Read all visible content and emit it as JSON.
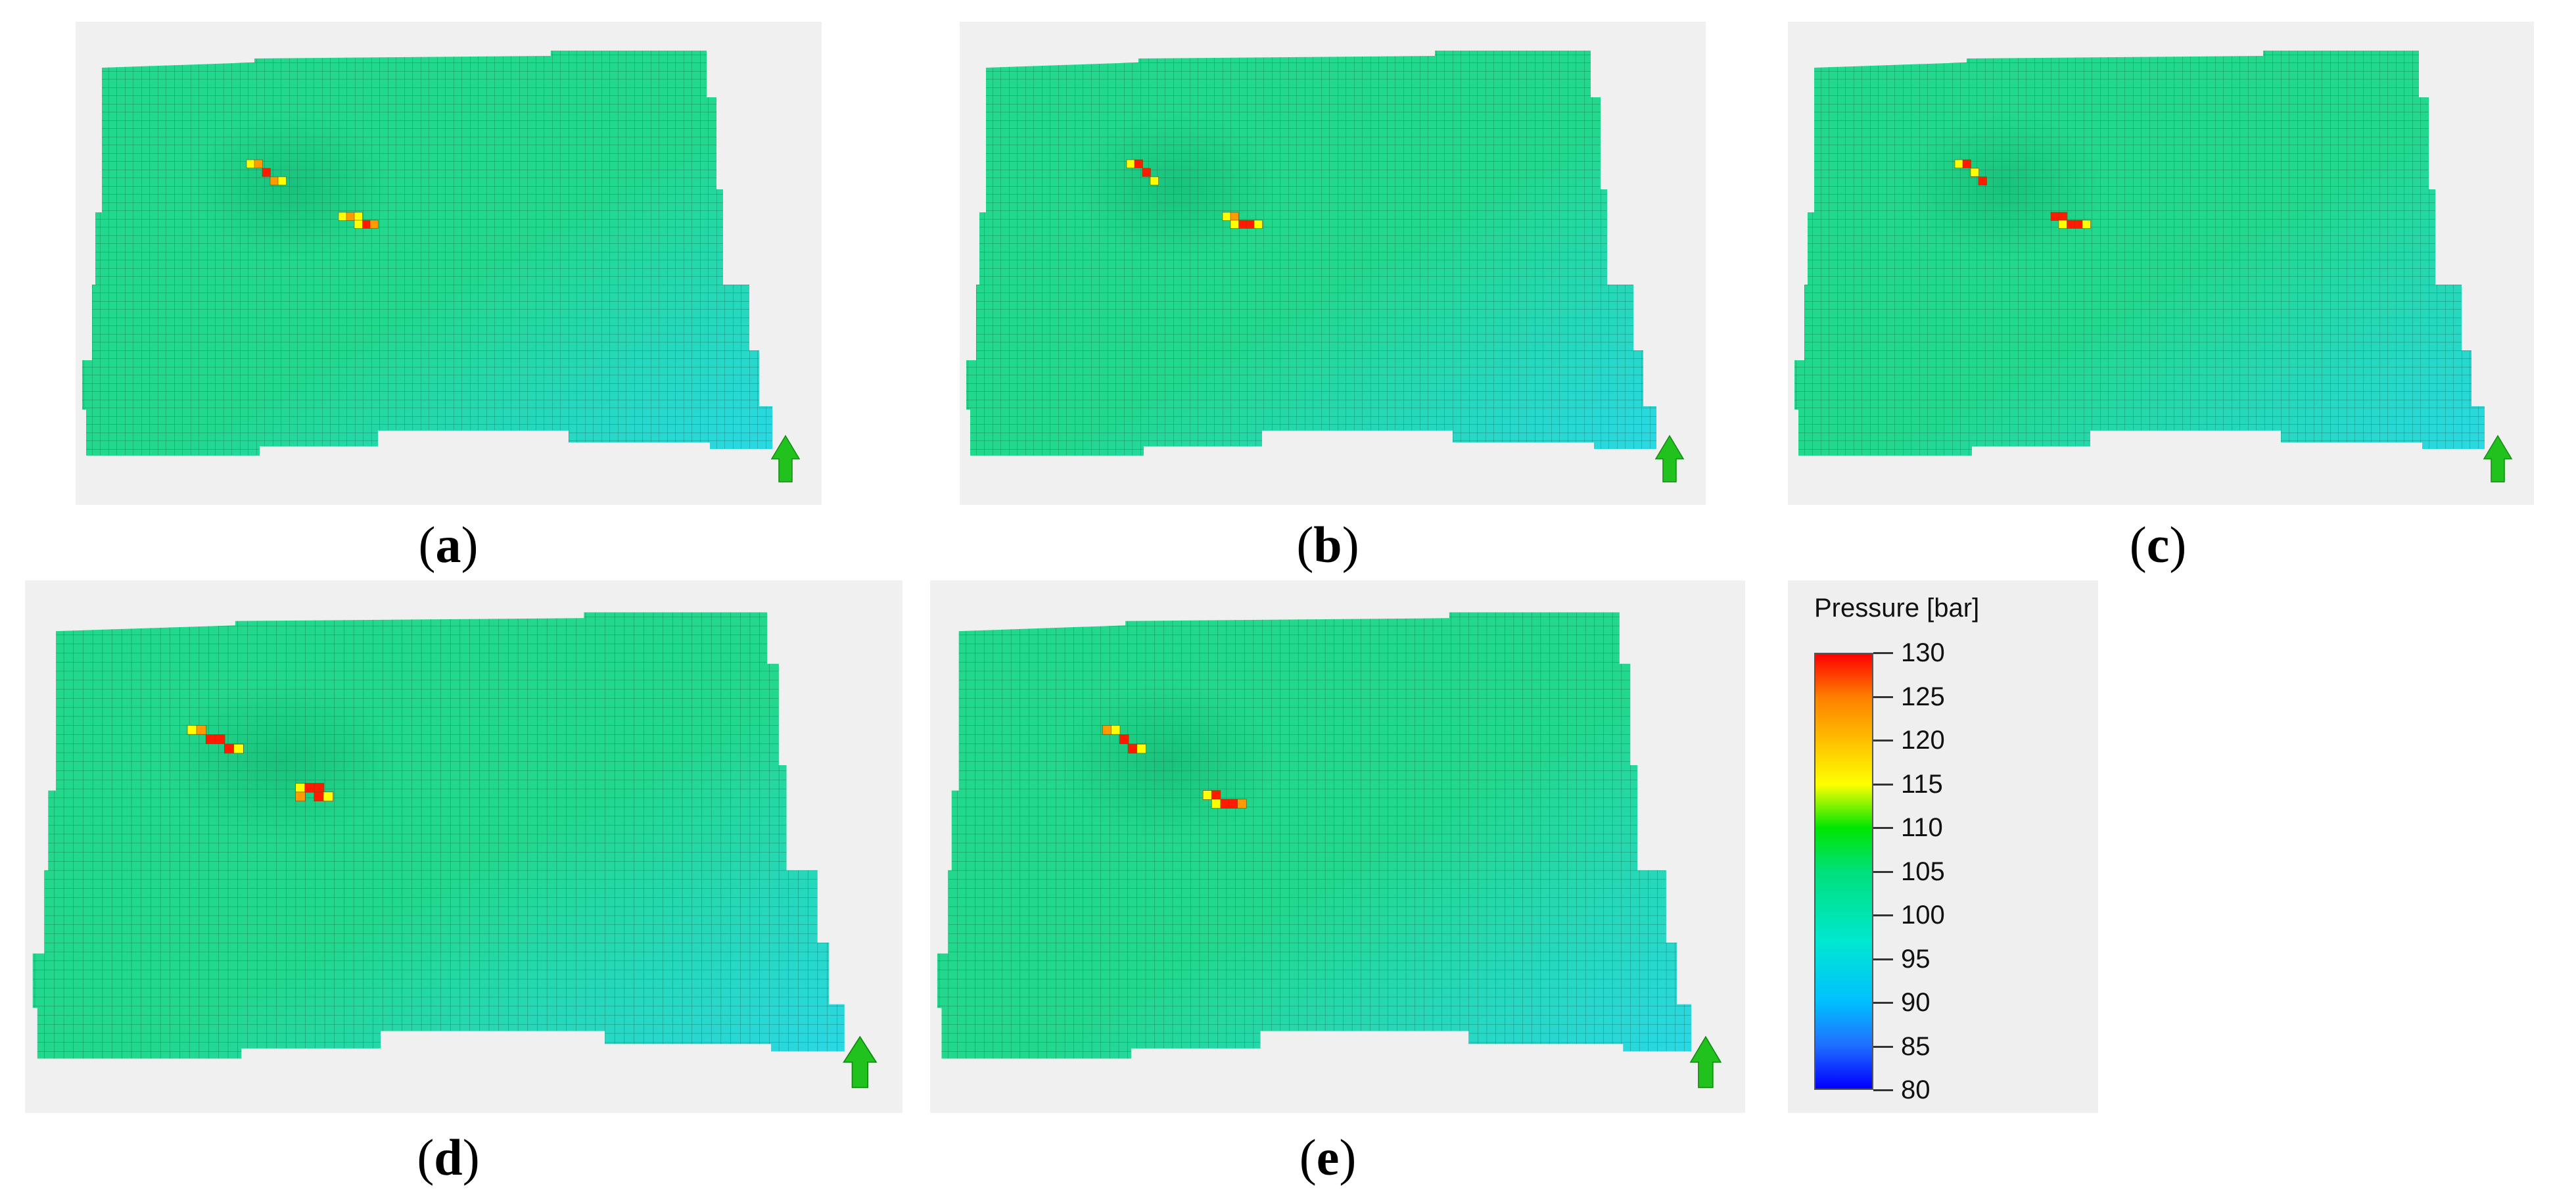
{
  "figure": {
    "panels": [
      {
        "id": "a",
        "caption": "a"
      },
      {
        "id": "b",
        "caption": "b"
      },
      {
        "id": "c",
        "caption": "c"
      },
      {
        "id": "d",
        "caption": "d"
      },
      {
        "id": "e",
        "caption": "e"
      }
    ],
    "legend": {
      "title": "Pressure [bar]",
      "min": 80,
      "max": 130,
      "ticks": [
        "130",
        "125",
        "120",
        "115",
        "110",
        "105",
        "100",
        "95",
        "90",
        "85",
        "80"
      ]
    },
    "colors": {
      "field_green": "#22d88c",
      "field_cyan": "#2ad8e6",
      "well_red": "#ff1a00",
      "well_orange": "#ff9a00",
      "well_yellow": "#ffff00",
      "north_arrow": "#22c21e",
      "panel_background": "#f0f0f0"
    }
  }
}
